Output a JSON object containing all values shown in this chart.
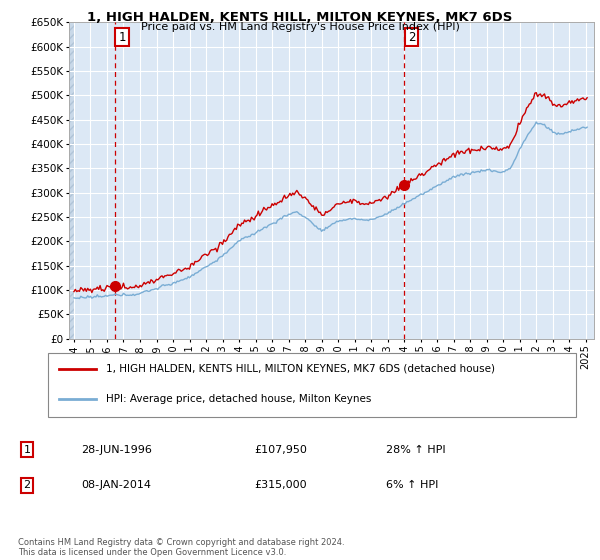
{
  "title": "1, HIGH HALDEN, KENTS HILL, MILTON KEYNES, MK7 6DS",
  "subtitle": "Price paid vs. HM Land Registry's House Price Index (HPI)",
  "legend_line1": "1, HIGH HALDEN, KENTS HILL, MILTON KEYNES, MK7 6DS (detached house)",
  "legend_line2": "HPI: Average price, detached house, Milton Keynes",
  "transaction1_date": "28-JUN-1996",
  "transaction1_price": "£107,950",
  "transaction1_hpi": "28% ↑ HPI",
  "transaction2_date": "08-JAN-2014",
  "transaction2_price": "£315,000",
  "transaction2_hpi": "6% ↑ HPI",
  "copyright": "Contains HM Land Registry data © Crown copyright and database right 2024.\nThis data is licensed under the Open Government Licence v3.0.",
  "ylim": [
    0,
    650000
  ],
  "yticks": [
    0,
    50000,
    100000,
    150000,
    200000,
    250000,
    300000,
    350000,
    400000,
    450000,
    500000,
    550000,
    600000,
    650000
  ],
  "ytick_labels": [
    "£0",
    "£50K",
    "£100K",
    "£150K",
    "£200K",
    "£250K",
    "£300K",
    "£350K",
    "£400K",
    "£450K",
    "£500K",
    "£550K",
    "£600K",
    "£650K"
  ],
  "xticks": [
    1994,
    1995,
    1996,
    1997,
    1998,
    1999,
    2000,
    2001,
    2002,
    2003,
    2004,
    2005,
    2006,
    2007,
    2008,
    2009,
    2010,
    2011,
    2012,
    2013,
    2014,
    2015,
    2016,
    2017,
    2018,
    2019,
    2020,
    2021,
    2022,
    2023,
    2024,
    2025
  ],
  "sale1_x": 1996.49,
  "sale1_y": 107950,
  "sale2_x": 2014.02,
  "sale2_y": 315000,
  "red_color": "#cc0000",
  "blue_color": "#7aadd4",
  "bg_color": "#dce8f5",
  "grid_color": "#ffffff",
  "hatch_color": "#c8d8e8"
}
